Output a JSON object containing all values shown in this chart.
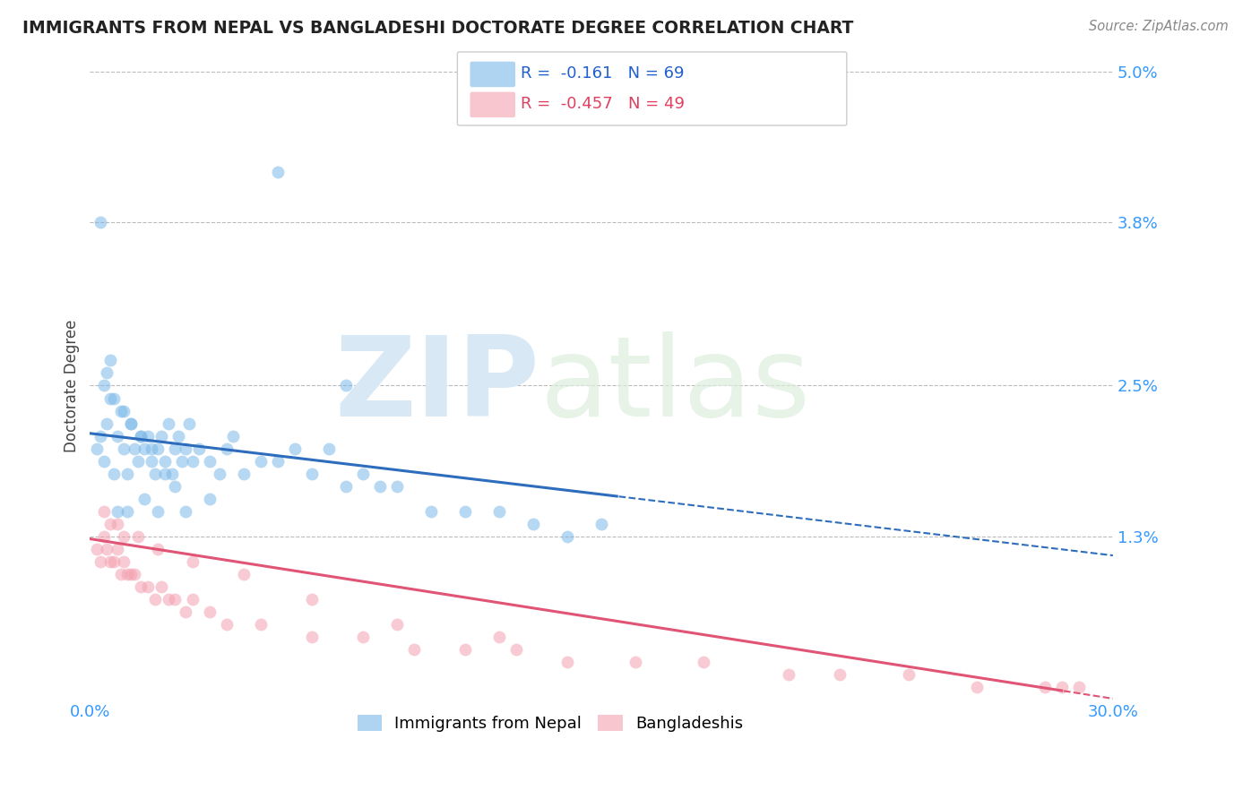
{
  "title": "IMMIGRANTS FROM NEPAL VS BANGLADESHI DOCTORATE DEGREE CORRELATION CHART",
  "source": "Source: ZipAtlas.com",
  "ylabel": "Doctorate Degree",
  "ytick_vals": [
    1.3,
    2.5,
    3.8,
    5.0
  ],
  "xlim": [
    0.0,
    30.0
  ],
  "ylim": [
    0.0,
    5.0
  ],
  "nepal_color": "#7ab8e8",
  "bangladesh_color": "#f4a0b0",
  "nepal_line_color": "#2e6dbd",
  "bangladesh_line_color": "#e05575",
  "nepal_R": -0.161,
  "nepal_N": 69,
  "bangladesh_R": -0.457,
  "bangladesh_N": 49,
  "legend_label1": "Immigrants from Nepal",
  "legend_label2": "Bangladeshis",
  "nepal_line_x0": 0.0,
  "nepal_line_y0": 2.12,
  "nepal_line_x1": 29.0,
  "nepal_line_y1": 1.18,
  "nepal_solid_xmax": 15.5,
  "bang_line_x0": 0.0,
  "bang_line_y0": 1.28,
  "bang_line_x1": 29.0,
  "bang_line_y1": 0.05,
  "bang_solid_xmax": 28.5,
  "nepal_scatter_x": [
    0.2,
    0.3,
    0.4,
    0.5,
    0.6,
    0.7,
    0.8,
    0.9,
    1.0,
    1.1,
    1.2,
    1.3,
    1.4,
    1.5,
    1.6,
    1.7,
    1.8,
    1.9,
    2.0,
    2.1,
    2.2,
    2.3,
    2.4,
    2.5,
    2.6,
    2.7,
    2.8,
    2.9,
    3.0,
    3.2,
    3.5,
    3.8,
    4.0,
    4.2,
    4.5,
    5.0,
    5.5,
    6.0,
    6.5,
    7.0,
    7.5,
    8.0,
    8.5,
    9.0,
    10.0,
    11.0,
    12.0,
    13.0,
    14.0,
    15.0,
    0.4,
    0.5,
    0.6,
    0.7,
    1.0,
    1.2,
    1.5,
    1.8,
    2.2,
    2.5,
    0.3,
    5.5,
    7.5,
    0.8,
    1.1,
    1.6,
    2.0,
    2.8,
    3.5
  ],
  "nepal_scatter_y": [
    2.0,
    2.1,
    1.9,
    2.2,
    2.4,
    1.8,
    2.1,
    2.3,
    2.0,
    1.8,
    2.2,
    2.0,
    1.9,
    2.1,
    2.0,
    2.1,
    1.9,
    1.8,
    2.0,
    2.1,
    1.9,
    2.2,
    1.8,
    2.0,
    2.1,
    1.9,
    2.0,
    2.2,
    1.9,
    2.0,
    1.9,
    1.8,
    2.0,
    2.1,
    1.8,
    1.9,
    1.9,
    2.0,
    1.8,
    2.0,
    1.7,
    1.8,
    1.7,
    1.7,
    1.5,
    1.5,
    1.5,
    1.4,
    1.3,
    1.4,
    2.5,
    2.6,
    2.7,
    2.4,
    2.3,
    2.2,
    2.1,
    2.0,
    1.8,
    1.7,
    3.8,
    4.2,
    2.5,
    1.5,
    1.5,
    1.6,
    1.5,
    1.5,
    1.6
  ],
  "bang_scatter_x": [
    0.2,
    0.3,
    0.4,
    0.5,
    0.6,
    0.7,
    0.8,
    0.9,
    1.0,
    1.1,
    1.2,
    1.3,
    1.5,
    1.7,
    1.9,
    2.1,
    2.3,
    2.5,
    2.8,
    3.0,
    3.5,
    4.0,
    5.0,
    6.5,
    8.0,
    9.5,
    11.0,
    12.5,
    14.0,
    16.0,
    18.0,
    20.5,
    22.0,
    24.0,
    26.0,
    28.0,
    0.4,
    0.6,
    0.8,
    1.0,
    1.4,
    2.0,
    3.0,
    4.5,
    6.5,
    9.0,
    12.0,
    28.5,
    29.0
  ],
  "bang_scatter_y": [
    1.2,
    1.1,
    1.3,
    1.2,
    1.1,
    1.1,
    1.2,
    1.0,
    1.1,
    1.0,
    1.0,
    1.0,
    0.9,
    0.9,
    0.8,
    0.9,
    0.8,
    0.8,
    0.7,
    0.8,
    0.7,
    0.6,
    0.6,
    0.5,
    0.5,
    0.4,
    0.4,
    0.4,
    0.3,
    0.3,
    0.3,
    0.2,
    0.2,
    0.2,
    0.1,
    0.1,
    1.5,
    1.4,
    1.4,
    1.3,
    1.3,
    1.2,
    1.1,
    1.0,
    0.8,
    0.6,
    0.5,
    0.1,
    0.1
  ]
}
